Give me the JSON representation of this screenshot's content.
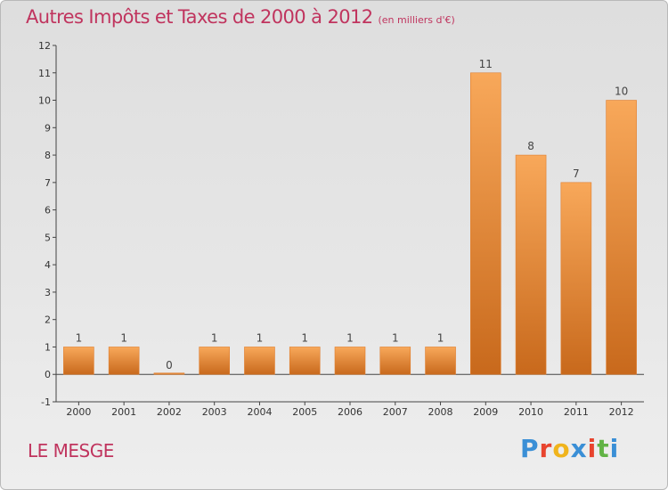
{
  "header": {
    "title": "Autres Impôts et Taxes de 2000 à 2012",
    "subtitle": "(en milliers d'€)"
  },
  "footer": {
    "commune": "LE MESGE",
    "logo_text": "Proxiti",
    "logo_colors": [
      "#3a8fd6",
      "#e8442e",
      "#f0b41c",
      "#3a8fd6",
      "#e8442e",
      "#62b346",
      "#3a8fd6"
    ]
  },
  "chart_data": {
    "type": "bar",
    "title": "Autres Impôts et Taxes de 2000 à 2012",
    "subtitle": "(en milliers d'€)",
    "categories": [
      "2000",
      "2001",
      "2002",
      "2003",
      "2004",
      "2005",
      "2006",
      "2007",
      "2008",
      "2009",
      "2010",
      "2011",
      "2012"
    ],
    "values": [
      1,
      1,
      0,
      1,
      1,
      1,
      1,
      1,
      1,
      11,
      8,
      7,
      10
    ],
    "ylim": [
      -1,
      12
    ],
    "yticks": [
      -1,
      0,
      1,
      2,
      3,
      4,
      5,
      6,
      7,
      8,
      9,
      10,
      11,
      12
    ],
    "grid": false,
    "colors": {
      "bar_light": "#f8a85a",
      "bar_dark": "#c8691c",
      "bar_edge": "#e07e2e"
    }
  }
}
